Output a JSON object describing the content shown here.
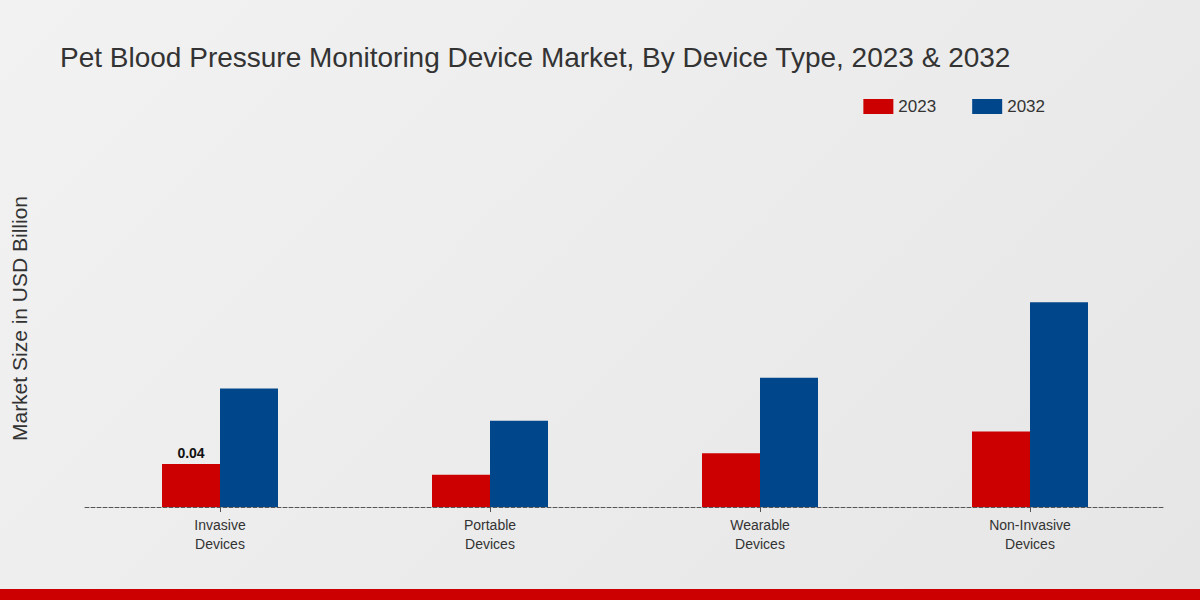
{
  "chart_data": {
    "type": "bar",
    "title": "Pet Blood Pressure Monitoring Device Market, By Device Type, 2023 & 2032",
    "y_label": "Market Size in USD Billion",
    "categories": [
      "Invasive Devices",
      "Portable Devices",
      "Wearable Devices",
      "Non-Invasive Devices"
    ],
    "series": [
      {
        "name": "2023",
        "color": "#cc0000",
        "values": [
          0.04,
          0.03,
          0.05,
          0.07
        ],
        "value_labels": [
          "0.04",
          null,
          null,
          null
        ]
      },
      {
        "name": "2032",
        "color": "#00468b",
        "values": [
          0.11,
          0.08,
          0.12,
          0.19
        ]
      }
    ],
    "ylim": [
      0,
      0.35
    ],
    "tick_labels": "x",
    "grid": false,
    "legend": "top right"
  }
}
